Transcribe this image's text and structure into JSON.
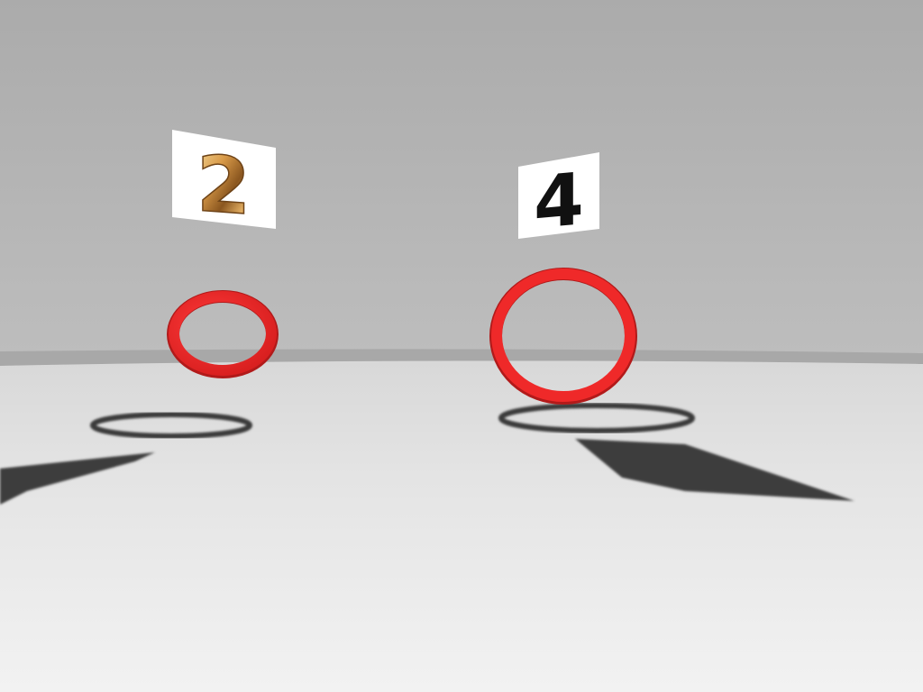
{
  "scene": {
    "colors": {
      "wall": "#b4b4b4",
      "horizon_band": "#a6a6a6",
      "floor_near": "#efefef",
      "floor_far": "#dadada",
      "ring": "#ee2a2a",
      "ring_dark": "#a81818",
      "shadow": "#3c3c3c",
      "sign_bg": "#ffffff",
      "gold_light": "#f3cf86",
      "gold_mid": "#c78a3b",
      "gold_dark": "#6e4317",
      "digit_black": "#111111"
    },
    "signs": [
      {
        "label": "2",
        "style": "gold"
      },
      {
        "label": "4",
        "style": "black"
      }
    ],
    "rings": [
      {
        "name": "left-ring",
        "icon": "red-ring"
      },
      {
        "name": "right-ring",
        "icon": "red-ring"
      }
    ]
  }
}
